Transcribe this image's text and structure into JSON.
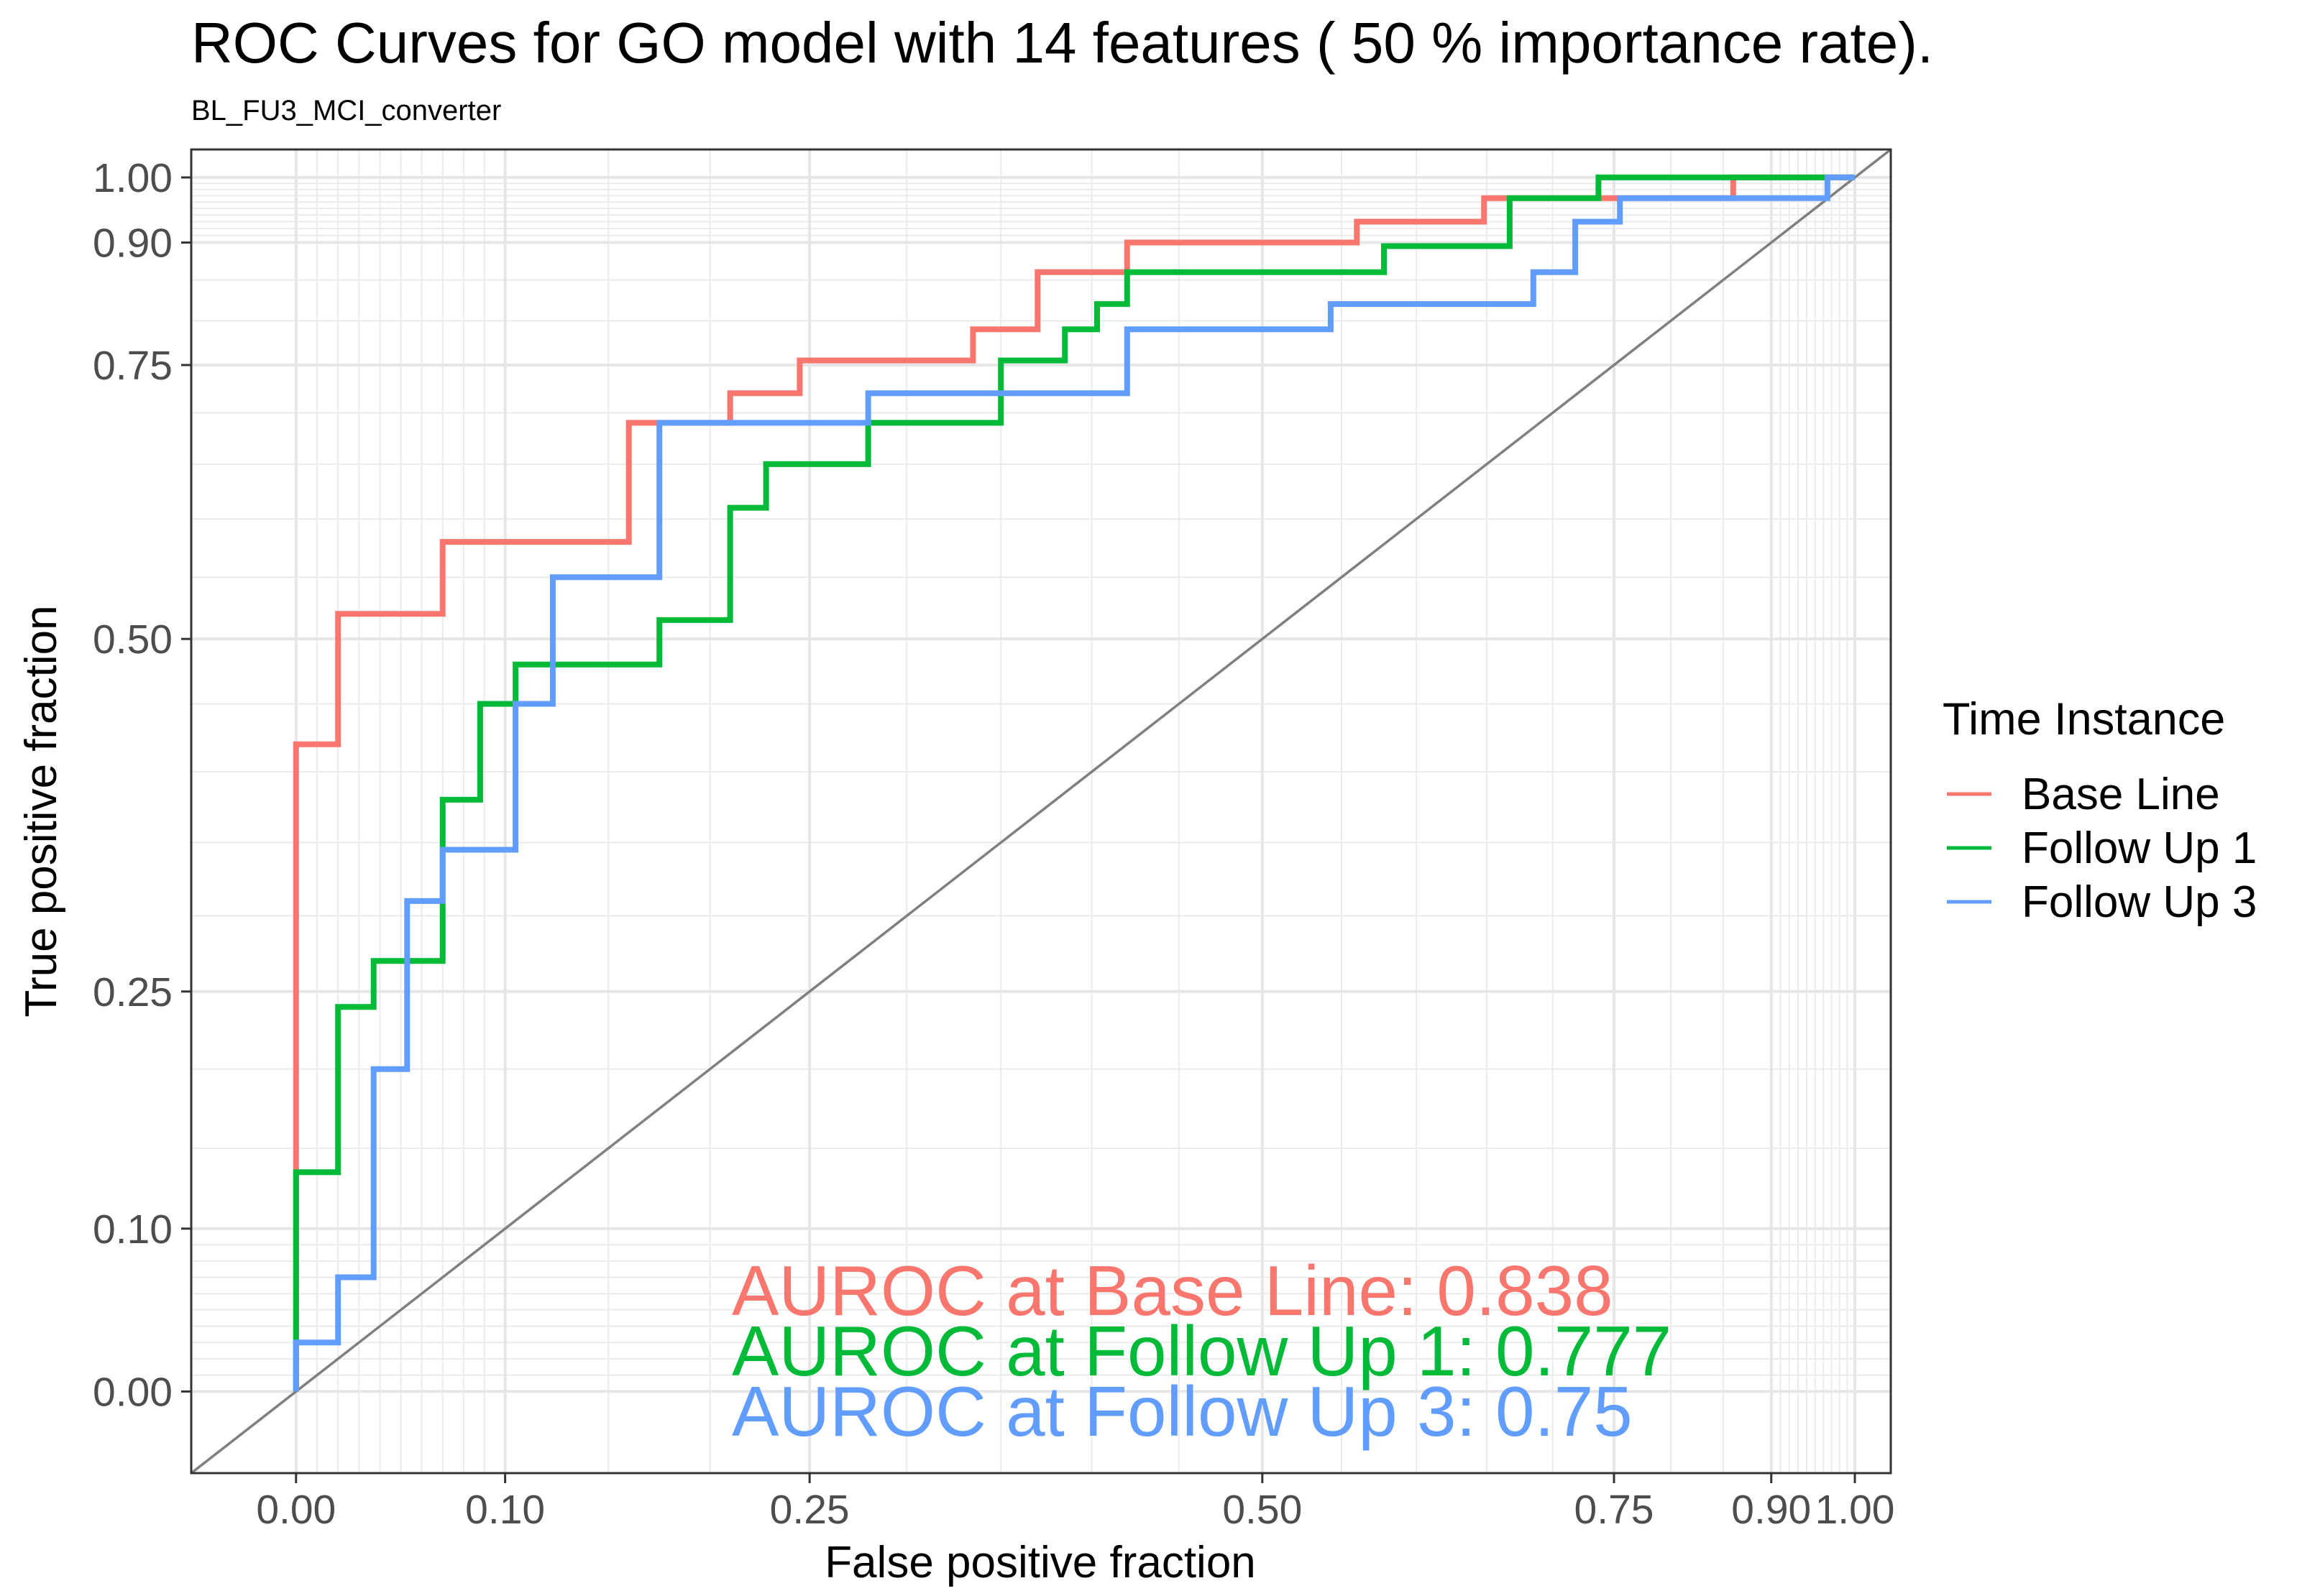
{
  "chart_data": {
    "type": "line",
    "title": "ROC Curves for GO model with 14 features ( 50 % importance rate).",
    "subtitle": "BL_FU3_MCI_converter",
    "xlabel": "False positive fraction",
    "ylabel": "True positive fraction",
    "xlim": [
      -0.05,
      1.05
    ],
    "ylim": [
      -0.05,
      1.05
    ],
    "axis_transform": "cumulative normal (pnorm) scale, sd = 0.7",
    "xticks": [
      "0.00",
      "0.10",
      "0.25",
      "0.50",
      "0.75",
      "0.90",
      "1.00"
    ],
    "yticks": [
      "0.00",
      "0.10",
      "0.25",
      "0.50",
      "0.75",
      "0.90",
      "1.00"
    ],
    "grid": true,
    "legend": {
      "title": "Time Instance",
      "position": "right"
    },
    "reference_line": {
      "from": [
        0,
        0
      ],
      "to": [
        1,
        1
      ],
      "color": "#7f7f7f"
    },
    "series": [
      {
        "name": "Base Line",
        "color": "#F8766D",
        "auroc_label": "AUROC at Base Line: 0.838",
        "points": [
          [
            0,
            0
          ],
          [
            0,
            0.14
          ],
          [
            0,
            0.42
          ],
          [
            0.02,
            0.42
          ],
          [
            0.02,
            0.52
          ],
          [
            0.07,
            0.52
          ],
          [
            0.07,
            0.58
          ],
          [
            0.16,
            0.58
          ],
          [
            0.16,
            0.69
          ],
          [
            0.21,
            0.69
          ],
          [
            0.21,
            0.72
          ],
          [
            0.245,
            0.72
          ],
          [
            0.245,
            0.755
          ],
          [
            0.335,
            0.755
          ],
          [
            0.335,
            0.79
          ],
          [
            0.37,
            0.79
          ],
          [
            0.37,
            0.86
          ],
          [
            0.42,
            0.86
          ],
          [
            0.42,
            0.9
          ],
          [
            0.56,
            0.9
          ],
          [
            0.56,
            0.93
          ],
          [
            0.648,
            0.93
          ],
          [
            0.648,
            0.966
          ],
          [
            0.86,
            0.966
          ],
          [
            0.86,
            1.0
          ],
          [
            0.88,
            1.0
          ],
          [
            0.96,
            1.0
          ],
          [
            1.0,
            1.0
          ]
        ]
      },
      {
        "name": "Follow Up 1",
        "color": "#00BA38",
        "auroc_label": "AUROC at Follow Up 1: 0.777",
        "points": [
          [
            0,
            0
          ],
          [
            0,
            0.04
          ],
          [
            0,
            0.135
          ],
          [
            0.02,
            0.135
          ],
          [
            0.02,
            0.24
          ],
          [
            0.037,
            0.24
          ],
          [
            0.037,
            0.27
          ],
          [
            0.07,
            0.27
          ],
          [
            0.07,
            0.38
          ],
          [
            0.088,
            0.38
          ],
          [
            0.088,
            0.45
          ],
          [
            0.105,
            0.45
          ],
          [
            0.105,
            0.48
          ],
          [
            0.175,
            0.48
          ],
          [
            0.175,
            0.515
          ],
          [
            0.21,
            0.515
          ],
          [
            0.21,
            0.61
          ],
          [
            0.228,
            0.61
          ],
          [
            0.228,
            0.65
          ],
          [
            0.28,
            0.65
          ],
          [
            0.28,
            0.69
          ],
          [
            0.35,
            0.69
          ],
          [
            0.35,
            0.755
          ],
          [
            0.385,
            0.755
          ],
          [
            0.385,
            0.79
          ],
          [
            0.403,
            0.79
          ],
          [
            0.403,
            0.82
          ],
          [
            0.42,
            0.82
          ],
          [
            0.42,
            0.86
          ],
          [
            0.578,
            0.86
          ],
          [
            0.578,
            0.895
          ],
          [
            0.667,
            0.895
          ],
          [
            0.667,
            0.966
          ],
          [
            0.737,
            0.966
          ],
          [
            0.737,
            1.0
          ],
          [
            1.0,
            1.0
          ]
        ]
      },
      {
        "name": "Follow Up 3",
        "color": "#619CFF",
        "auroc_label": "AUROC at Follow Up 3: 0.75",
        "points": [
          [
            0,
            0
          ],
          [
            0,
            0.03
          ],
          [
            0.02,
            0.03
          ],
          [
            0.02,
            0.07
          ],
          [
            0.037,
            0.07
          ],
          [
            0.037,
            0.2
          ],
          [
            0.053,
            0.2
          ],
          [
            0.053,
            0.31
          ],
          [
            0.07,
            0.31
          ],
          [
            0.07,
            0.345
          ],
          [
            0.105,
            0.345
          ],
          [
            0.105,
            0.45
          ],
          [
            0.123,
            0.45
          ],
          [
            0.123,
            0.55
          ],
          [
            0.175,
            0.55
          ],
          [
            0.175,
            0.69
          ],
          [
            0.28,
            0.69
          ],
          [
            0.28,
            0.72
          ],
          [
            0.42,
            0.72
          ],
          [
            0.42,
            0.79
          ],
          [
            0.543,
            0.79
          ],
          [
            0.543,
            0.82
          ],
          [
            0.685,
            0.82
          ],
          [
            0.685,
            0.86
          ],
          [
            0.718,
            0.86
          ],
          [
            0.718,
            0.93
          ],
          [
            0.755,
            0.93
          ],
          [
            0.755,
            0.966
          ],
          [
            0.965,
            0.966
          ],
          [
            0.965,
            1.0
          ],
          [
            1.0,
            1.0
          ]
        ]
      }
    ]
  }
}
